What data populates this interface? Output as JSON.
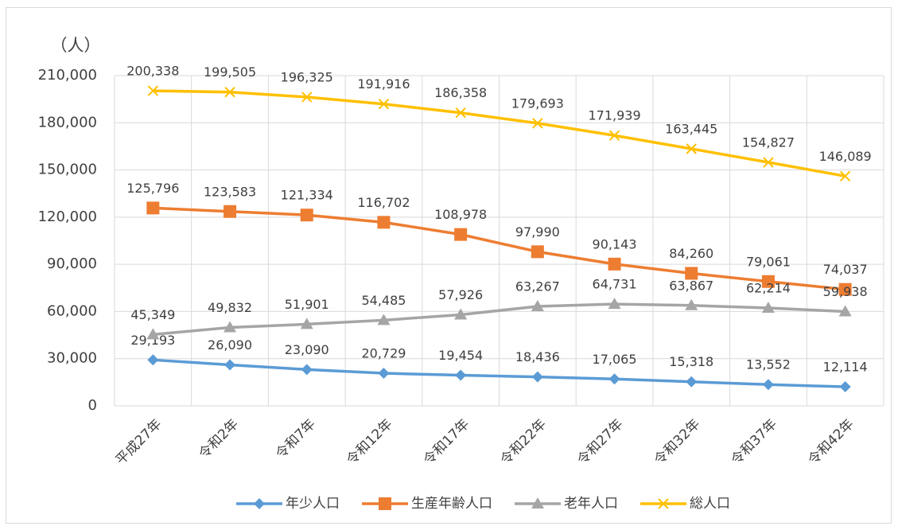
{
  "chart_data": {
    "type": "line",
    "unit_label": "（人）",
    "categories": [
      "平成27年",
      "令和2年",
      "令和7年",
      "令和12年",
      "令和17年",
      "令和22年",
      "令和27年",
      "令和32年",
      "令和37年",
      "令和42年"
    ],
    "series": [
      {
        "name": "年少人口",
        "color": "#5b9bd5",
        "marker": "diamond",
        "values": [
          29193,
          26090,
          23090,
          20729,
          19454,
          18436,
          17065,
          15318,
          13552,
          12114
        ],
        "value_labels": [
          "29,193",
          "26,090",
          "23,090",
          "20,729",
          "19,454",
          "18,436",
          "17,065",
          "15,318",
          "13,552",
          "12,114"
        ]
      },
      {
        "name": "生産年齢人口",
        "color": "#ed7d31",
        "marker": "square",
        "values": [
          125796,
          123583,
          121334,
          116702,
          108978,
          97990,
          90143,
          84260,
          79061,
          74037
        ],
        "value_labels": [
          "125,796",
          "123,583",
          "121,334",
          "116,702",
          "108,978",
          "97,990",
          "90,143",
          "84,260",
          "79,061",
          "74,037"
        ]
      },
      {
        "name": "老年人口",
        "color": "#a5a5a5",
        "marker": "triangle",
        "values": [
          45349,
          49832,
          51901,
          54485,
          57926,
          63267,
          64731,
          63867,
          62214,
          59938
        ],
        "value_labels": [
          "45,349",
          "49,832",
          "51,901",
          "54,485",
          "57,926",
          "63,267",
          "64,731",
          "63,867",
          "62,214",
          "59,938"
        ]
      },
      {
        "name": "総人口",
        "color": "#ffc000",
        "marker": "x",
        "values": [
          200338,
          199505,
          196325,
          191916,
          186358,
          179693,
          171939,
          163445,
          154827,
          146089
        ],
        "value_labels": [
          "200,338",
          "199,505",
          "196,325",
          "191,916",
          "186,358",
          "179,693",
          "171,939",
          "163,445",
          "154,827",
          "146,089"
        ]
      }
    ],
    "ylim": [
      0,
      210000
    ],
    "yticks": [
      0,
      {
        "value": 30000,
        "label": "30,000"
      },
      {
        "value": 60000,
        "label": "60,000"
      },
      {
        "value": 90000,
        "label": "90,000"
      },
      {
        "value": 120000,
        "label": "120,000"
      },
      {
        "value": 150000,
        "label": "150,000"
      },
      {
        "value": 180000,
        "label": "180,000"
      },
      {
        "value": 210000,
        "label": "210,000"
      }
    ],
    "grid": true,
    "legend": "bottom"
  }
}
